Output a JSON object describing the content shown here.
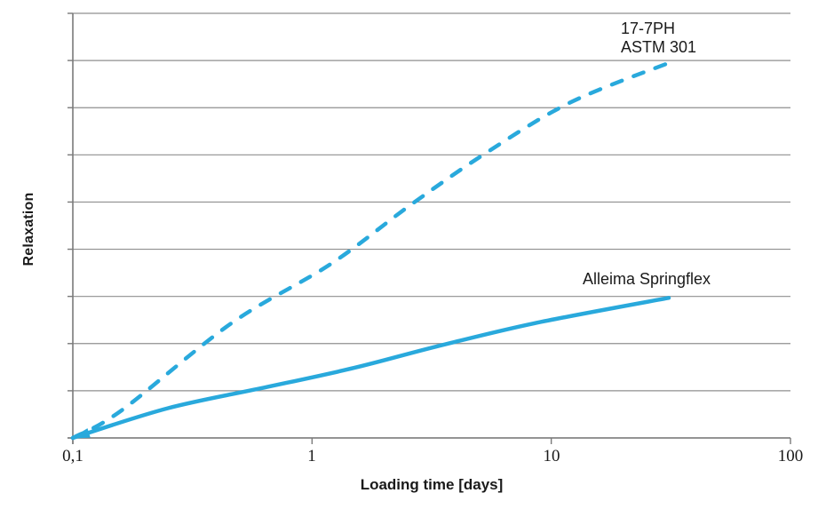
{
  "chart_data": {
    "type": "line",
    "title": "",
    "xlabel": "Loading time [days]",
    "ylabel": "Relaxation",
    "x_scale": "log",
    "xlim": [
      0.1,
      100
    ],
    "x_ticks": [
      0.1,
      1,
      10,
      100
    ],
    "x_tick_labels": [
      "0,1",
      "1",
      "10",
      "100"
    ],
    "ylim": [
      0,
      1
    ],
    "y_axis_numeric_labels": false,
    "horizontal_gridlines": 10,
    "grid": "horizontal-only",
    "legend_position": "inline-annotations",
    "colors": {
      "line": "#29A9DC",
      "grid": "#8f8f8f",
      "axis": "#7a7a7a",
      "text": "#1a1a1a",
      "background": "#ffffff"
    },
    "series": [
      {
        "name": "17-7PH ASTM 301",
        "label_lines": [
          "17-7PH",
          "ASTM 301"
        ],
        "style": "dashed",
        "x": [
          0.1,
          0.16,
          0.46,
          1.2,
          2.6,
          5.3,
          12,
          31.6
        ],
        "y": [
          0.0,
          0.065,
          0.27,
          0.41,
          0.55,
          0.67,
          0.79,
          0.885
        ]
      },
      {
        "name": "Alleima Springflex",
        "label": "Alleima Springflex",
        "style": "solid",
        "arrow_at_start": true,
        "x": [
          0.1,
          0.25,
          0.65,
          1.5,
          3.3,
          8.5,
          31.0
        ],
        "y": [
          0.0,
          0.07,
          0.12,
          0.165,
          0.215,
          0.27,
          0.33
        ]
      }
    ]
  }
}
